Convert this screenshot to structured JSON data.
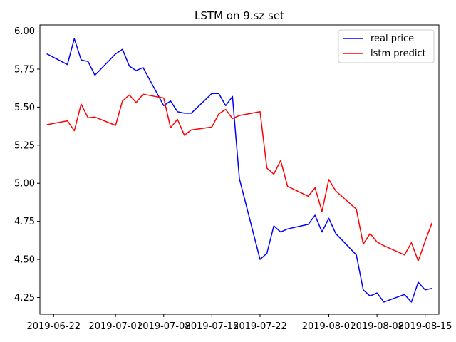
{
  "chart_data": {
    "type": "line",
    "title": "LSTM on 9.sz set",
    "xlabel": "",
    "ylabel": "",
    "ylim": [
      4.14,
      6.04
    ],
    "xlim": [
      "2019-06-20",
      "2019-08-17"
    ],
    "grid": false,
    "legend_position": "top-right",
    "x_ticks": [
      "2019-06-22",
      "2019-07-01",
      "2019-07-08",
      "2019-07-15",
      "2019-07-22",
      "2019-08-01",
      "2019-08-08",
      "2019-08-15"
    ],
    "y_ticks": [
      "4.25",
      "4.50",
      "4.75",
      "5.00",
      "5.25",
      "5.50",
      "5.75",
      "6.00"
    ],
    "x": [
      "2019-06-21",
      "2019-06-24",
      "2019-06-25",
      "2019-06-26",
      "2019-06-27",
      "2019-06-28",
      "2019-07-01",
      "2019-07-02",
      "2019-07-03",
      "2019-07-04",
      "2019-07-05",
      "2019-07-08",
      "2019-07-09",
      "2019-07-10",
      "2019-07-11",
      "2019-07-12",
      "2019-07-15",
      "2019-07-16",
      "2019-07-17",
      "2019-07-18",
      "2019-07-19",
      "2019-07-22",
      "2019-07-23",
      "2019-07-24",
      "2019-07-25",
      "2019-07-26",
      "2019-07-29",
      "2019-07-30",
      "2019-07-31",
      "2019-08-01",
      "2019-08-02",
      "2019-08-05",
      "2019-08-06",
      "2019-08-07",
      "2019-08-08",
      "2019-08-09",
      "2019-08-12",
      "2019-08-13",
      "2019-08-14",
      "2019-08-15",
      "2019-08-16"
    ],
    "series": [
      {
        "name": "real price",
        "color": "#0000ff",
        "values": [
          5.85,
          5.78,
          5.95,
          5.81,
          5.8,
          5.71,
          5.85,
          5.88,
          5.77,
          5.74,
          5.76,
          5.51,
          5.54,
          5.47,
          5.46,
          5.46,
          5.59,
          5.59,
          5.51,
          5.57,
          5.03,
          4.5,
          4.54,
          4.72,
          4.68,
          4.7,
          4.73,
          4.79,
          4.68,
          4.77,
          4.67,
          4.53,
          4.3,
          4.26,
          4.28,
          4.22,
          4.27,
          4.22,
          4.35,
          4.3,
          4.31
        ]
      },
      {
        "name": "lstm predict",
        "color": "#ff0000",
        "values": [
          5.385,
          5.41,
          5.345,
          5.52,
          5.43,
          5.435,
          5.38,
          5.54,
          5.58,
          5.53,
          5.585,
          5.56,
          5.365,
          5.42,
          5.315,
          5.35,
          5.37,
          5.455,
          5.485,
          5.425,
          5.445,
          5.47,
          5.1,
          5.06,
          5.15,
          4.98,
          4.915,
          4.97,
          4.815,
          5.025,
          4.95,
          4.83,
          4.6,
          4.67,
          4.615,
          4.59,
          4.53,
          4.61,
          4.49,
          4.62,
          4.74
        ]
      }
    ]
  }
}
